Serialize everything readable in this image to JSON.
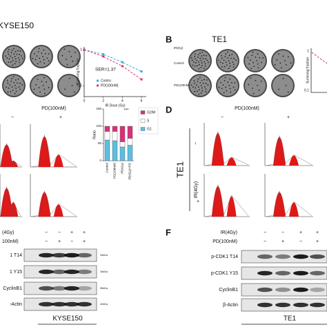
{
  "panel_a": {
    "cell_line": "KYSE150",
    "ser": "SER=1.37",
    "chart_data": {
      "type": "line",
      "x": [
        0,
        2,
        4,
        6
      ],
      "xlim": [
        0,
        6.5
      ],
      "xticks": [
        0,
        2,
        4,
        6
      ],
      "ylim": [
        0.05,
        1.2
      ],
      "yticks": [
        0.1,
        1
      ],
      "log_y": true,
      "x_label": "IR Dose (Gy)",
      "y_label": "Surviving fraction",
      "series": [
        {
          "name": "Contro",
          "color": "#38a8dc",
          "values": [
            1,
            0.75,
            0.45,
            0.25
          ]
        },
        {
          "name": "PD(100nM)",
          "color": "#e0306a",
          "values": [
            1,
            0.65,
            0.35,
            0.15
          ]
        }
      ]
    }
  },
  "panel_b": {
    "letter": "B",
    "cell_line": "TE1",
    "ir_label": "IR(Gy)",
    "rows": [
      "Control",
      "PD(100nM)"
    ],
    "y_label": "Surviving fraction",
    "yticks": [
      1,
      0.1
    ]
  },
  "panel_c": {
    "treatment": "PD(100nM)",
    "signs": [
      "−",
      "+"
    ],
    "chart_data": {
      "type": "bar",
      "stacked": true,
      "y_label": "Ratio",
      "annotation": "***",
      "categories": [
        "Control",
        "PD(100nM)",
        "IR(4Gy)",
        "IR(4Gy)+PD"
      ],
      "ylim": [
        0,
        150
      ],
      "yticks": [
        0,
        50,
        100,
        150
      ],
      "series": [
        {
          "name": "G2/M",
          "color": "#d8307a",
          "values": [
            15,
            15,
            45,
            35
          ]
        },
        {
          "name": "S",
          "color": "#ffffff",
          "values": [
            25,
            27,
            15,
            20
          ]
        },
        {
          "name": "G1",
          "color": "#5bbfe0",
          "values": [
            60,
            58,
            40,
            45
          ]
        }
      ]
    }
  },
  "panel_d": {
    "letter": "D",
    "treatment": "PD(100nM)",
    "signs": [
      "−",
      "+"
    ],
    "cell_line": "TE1",
    "ir": "IR(4Gy)",
    "ir_signs": [
      "−",
      "+"
    ]
  },
  "panel_e": {
    "rows": [
      {
        "label": "(4Gy)",
        "signs": [
          "−",
          "−",
          "+",
          "+"
        ]
      },
      {
        "label": "100nM)",
        "signs": [
          "−",
          "+",
          "−",
          "+"
        ]
      }
    ],
    "blots": [
      {
        "label": "1 T14",
        "kda": "34kDa"
      },
      {
        "label": "1 Y15",
        "kda": "34kDa"
      },
      {
        "label": "CyclinB1",
        "kda": "55kDa"
      },
      {
        "label": "-Actin",
        "kda": "42kDa"
      }
    ],
    "cell_line": "KYSE150"
  },
  "panel_f": {
    "letter": "F",
    "rows": [
      {
        "label": "IR(4Gy)",
        "signs": [
          "−",
          "−",
          "+",
          "+"
        ]
      },
      {
        "label": "PD(100nM)",
        "signs": [
          "−",
          "+",
          "−",
          "+"
        ]
      }
    ],
    "blots": [
      {
        "label": "p-CDK1 T14"
      },
      {
        "label": "p-CDK1 Y15"
      },
      {
        "label": "CyclinB1"
      },
      {
        "label": "β-Actin"
      }
    ],
    "cell_line": "TE1"
  }
}
